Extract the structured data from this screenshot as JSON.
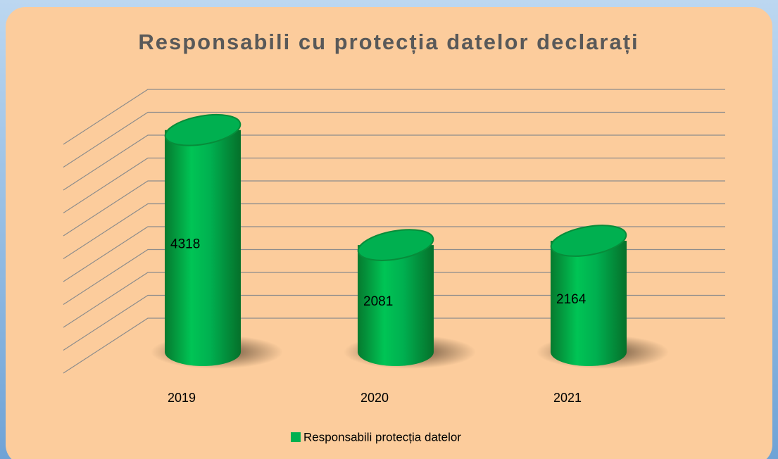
{
  "chart_data": {
    "type": "bar3d",
    "title": "Responsabili cu protecția datelor declarați",
    "categories": [
      "2019",
      "2020",
      "2021"
    ],
    "series": [
      {
        "name": "Responsabili protecția datelor",
        "color": "#00b050",
        "values": [
          4318,
          2081,
          2164
        ]
      }
    ],
    "ylim": [
      0,
      5000
    ],
    "yticks": [
      0,
      500,
      1000,
      1500,
      2000,
      2500,
      3000,
      3500,
      4000,
      4500,
      5000
    ],
    "grid": true,
    "legend": "bottom"
  }
}
